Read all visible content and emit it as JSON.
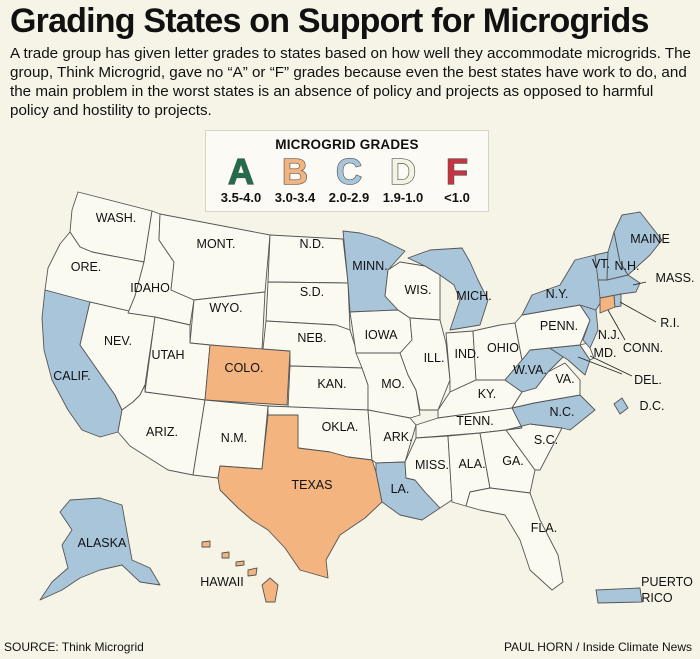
{
  "title": "Grading States on Support for Microgrids",
  "subtitle": "A trade group has given letter grades to states based on how well they accommodate microgrids. The group, Think Microgrid, gave no “A” or “F” grades because even the best states have work to do, and the main problem in the worst states is an absence of policy and projects as opposed to harmful policy and hostility to projects.",
  "legend": {
    "title": "MICROGRID GRADES",
    "grades": [
      {
        "letter": "A",
        "range": "3.5-4.0",
        "color": "#1f6e48"
      },
      {
        "letter": "B",
        "range": "3.0-3.4",
        "color": "#f3b47f"
      },
      {
        "letter": "C",
        "range": "2.0-2.9",
        "color": "#a9c5da"
      },
      {
        "letter": "D",
        "range": "1.9-1.0",
        "color": "#f4f2e2"
      },
      {
        "letter": "F",
        "range": "<1.0",
        "color": "#c9333e"
      }
    ]
  },
  "colors": {
    "B": "#f3b47f",
    "C": "#a9c5da",
    "D": "#fbfaf1",
    "border": "#555555"
  },
  "states": {
    "wash": {
      "label": "WASH.",
      "grade": "D"
    },
    "ore": {
      "label": "ORE.",
      "grade": "D"
    },
    "calif": {
      "label": "CALIF.",
      "grade": "C"
    },
    "nev": {
      "label": "NEV.",
      "grade": "D"
    },
    "idaho": {
      "label": "IDAHO",
      "grade": "D"
    },
    "mont": {
      "label": "MONT.",
      "grade": "D"
    },
    "wyo": {
      "label": "WYO.",
      "grade": "D"
    },
    "utah": {
      "label": "UTAH",
      "grade": "D"
    },
    "ariz": {
      "label": "ARIZ.",
      "grade": "D"
    },
    "colo": {
      "label": "COLO.",
      "grade": "B"
    },
    "nm": {
      "label": "N.M.",
      "grade": "D"
    },
    "nd": {
      "label": "N.D.",
      "grade": "D"
    },
    "sd": {
      "label": "S.D.",
      "grade": "D"
    },
    "neb": {
      "label": "NEB.",
      "grade": "D"
    },
    "kan": {
      "label": "KAN.",
      "grade": "D"
    },
    "okla": {
      "label": "OKLA.",
      "grade": "D"
    },
    "texas": {
      "label": "TEXAS",
      "grade": "B"
    },
    "minn": {
      "label": "MINN.",
      "grade": "C"
    },
    "iowa": {
      "label": "IOWA",
      "grade": "D"
    },
    "mo": {
      "label": "MO.",
      "grade": "D"
    },
    "ark": {
      "label": "ARK.",
      "grade": "D"
    },
    "la": {
      "label": "LA.",
      "grade": "C"
    },
    "wis": {
      "label": "WIS.",
      "grade": "D"
    },
    "ill": {
      "label": "ILL.",
      "grade": "D"
    },
    "mich": {
      "label": "MICH.",
      "grade": "C"
    },
    "ind": {
      "label": "IND.",
      "grade": "D"
    },
    "ohio": {
      "label": "OHIO",
      "grade": "D"
    },
    "ky": {
      "label": "KY.",
      "grade": "D"
    },
    "tenn": {
      "label": "TENN.",
      "grade": "D"
    },
    "miss": {
      "label": "MISS.",
      "grade": "D"
    },
    "ala": {
      "label": "ALA.",
      "grade": "D"
    },
    "ga": {
      "label": "GA.",
      "grade": "D"
    },
    "fla": {
      "label": "FLA.",
      "grade": "D"
    },
    "sc": {
      "label": "S.C.",
      "grade": "D"
    },
    "nc": {
      "label": "N.C.",
      "grade": "C"
    },
    "va": {
      "label": "VA.",
      "grade": "D"
    },
    "wva": {
      "label": "W.VA.",
      "grade": "C"
    },
    "md": {
      "label": "MD.",
      "grade": "C"
    },
    "del": {
      "label": "DEL.",
      "grade": "D"
    },
    "dc": {
      "label": "D.C.",
      "grade": "C"
    },
    "pa": {
      "label": "PENN.",
      "grade": "D"
    },
    "nj": {
      "label": "N.J.",
      "grade": "C"
    },
    "ny": {
      "label": "N.Y.",
      "grade": "C"
    },
    "vt": {
      "label": "VT.",
      "grade": "C"
    },
    "nh": {
      "label": "N.H.",
      "grade": "C"
    },
    "maine": {
      "label": "MAINE",
      "grade": "C"
    },
    "mass": {
      "label": "MASS.",
      "grade": "C"
    },
    "ri": {
      "label": "R.I.",
      "grade": "C"
    },
    "conn": {
      "label": "CONN.",
      "grade": "B"
    },
    "alaska": {
      "label": "ALASKA",
      "grade": "C"
    },
    "hawaii": {
      "label": "HAWAII",
      "grade": "B"
    },
    "pr": {
      "label": "PUERTO",
      "label2": "RICO",
      "grade": "C"
    }
  },
  "source": "SOURCE: Think Microgrid",
  "credit": "PAUL HORN / Inside Climate News"
}
